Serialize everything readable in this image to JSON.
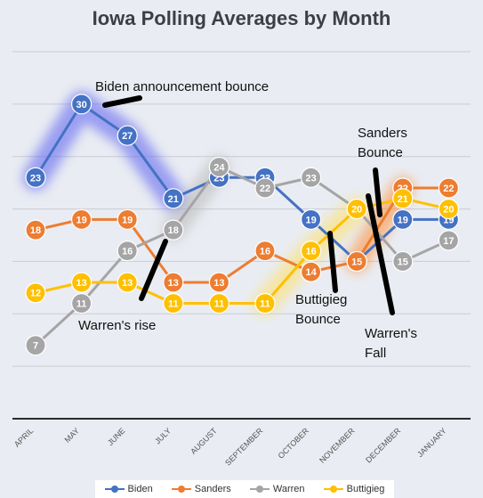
{
  "chart_data": {
    "type": "line",
    "title": "Iowa Polling Averages by Month",
    "categories": [
      "APRIL",
      "MAY",
      "JUNE",
      "JULY",
      "AUGUST",
      "SEPTEMBER",
      "OCTOBER",
      "NOVEMBER",
      "DECEMBER",
      "JANUARY"
    ],
    "ylim": [
      0,
      35
    ],
    "grid": true,
    "legend": "bottom",
    "series": [
      {
        "name": "Biden",
        "color": "#4472c4",
        "values": [
          23,
          30,
          27,
          21,
          23,
          23,
          19,
          15,
          19,
          19
        ]
      },
      {
        "name": "Sanders",
        "color": "#ed7d31",
        "values": [
          18,
          19,
          19,
          13,
          13,
          16,
          14,
          15,
          22,
          22
        ]
      },
      {
        "name": "Warren",
        "color": "#a5a5a5",
        "values": [
          7,
          11,
          16,
          18,
          24,
          22,
          23,
          20,
          15,
          17
        ]
      },
      {
        "name": "Buttigieg",
        "color": "#ffc000",
        "values": [
          12,
          13,
          13,
          11,
          11,
          11,
          16,
          20,
          21,
          20
        ]
      }
    ],
    "annotations": [
      "Biden announcement bounce",
      "Warren's rise",
      "Buttigieg Bounce",
      "Sanders Bounce",
      "Warren's Fall"
    ]
  }
}
